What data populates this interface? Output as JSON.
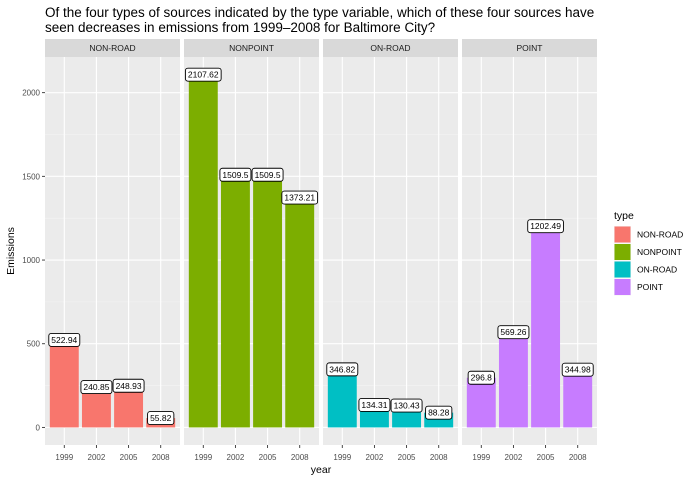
{
  "chart_data": {
    "type": "bar",
    "title": "Of the four types of sources indicated by the type variable, which of these four sources have seen decreases in emissions from 1999–2008 for Baltimore City?",
    "title_lines": [
      "Of the four types of sources indicated by the type variable, which of these four sources have",
      "seen decreases in emissions from 1999–2008 for Baltimore City?"
    ],
    "xlabel": "year",
    "ylabel": "Emissions",
    "categories": [
      "1999",
      "2002",
      "2005",
      "2008"
    ],
    "yticks": [
      0,
      500,
      1000,
      1500,
      2000
    ],
    "ylim": [
      -105,
      2213
    ],
    "grid": true,
    "facet_by": "type",
    "legend": {
      "title": "type",
      "position": "right"
    },
    "series": [
      {
        "name": "NON-ROAD",
        "color": "#F8766D",
        "values": [
          522.94,
          240.85,
          248.93,
          55.82
        ],
        "labels": [
          "522.94",
          "240.85",
          "248.93",
          "55.82"
        ]
      },
      {
        "name": "NONPOINT",
        "color": "#7CAE00",
        "values": [
          2107.62,
          1509.5,
          1509.5,
          1373.21
        ],
        "labels": [
          "2107.62",
          "1509.5",
          "1509.5",
          "1373.21"
        ]
      },
      {
        "name": "ON-ROAD",
        "color": "#00BFC4",
        "values": [
          346.82,
          134.31,
          130.43,
          88.28
        ],
        "labels": [
          "346.82",
          "134.31",
          "130.43",
          "88.28"
        ]
      },
      {
        "name": "POINT",
        "color": "#C77CFF",
        "values": [
          296.8,
          569.26,
          1202.49,
          344.98
        ],
        "labels": [
          "296.8",
          "569.26",
          "1202.49",
          "344.98"
        ]
      }
    ]
  }
}
